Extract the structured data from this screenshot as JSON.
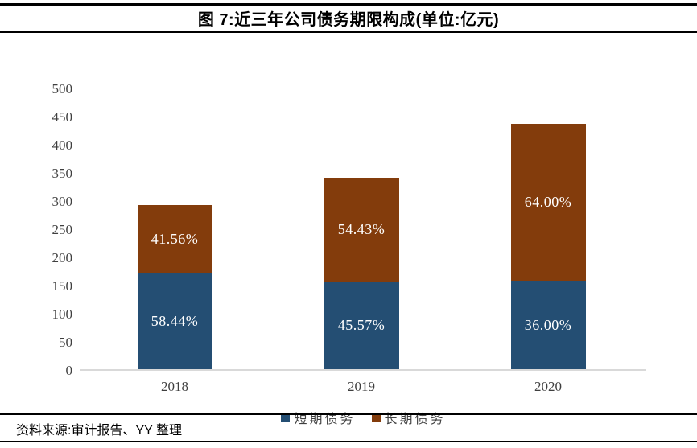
{
  "header": {
    "title": "图 7:近三年公司债务期限构成(单位:亿元)"
  },
  "footer": {
    "source": "资料来源:审计报告、YY 整理"
  },
  "chart_data": {
    "type": "bar",
    "stacked": true,
    "title": "图 7:近三年公司债务期限构成(单位:亿元)",
    "unit": "亿元",
    "categories": [
      "2018",
      "2019",
      "2020"
    ],
    "series": [
      {
        "name": "短期债务",
        "key": "short-term",
        "color": "#244E73",
        "values": [
          170,
          155,
          157
        ],
        "percent_labels": [
          "58.44%",
          "45.57%",
          "36.00%"
        ]
      },
      {
        "name": "长期债务",
        "key": "long-term",
        "color": "#833C0C",
        "values": [
          121,
          185,
          279
        ],
        "percent_labels": [
          "41.56%",
          "54.43%",
          "64.00%"
        ]
      }
    ],
    "totals": [
      291,
      340,
      436
    ],
    "xlabel": "",
    "ylabel": "",
    "ylim": [
      0,
      500
    ],
    "ytick_step": 50,
    "yticks": [
      0,
      50,
      100,
      150,
      200,
      250,
      300,
      350,
      400,
      450,
      500
    ],
    "grid": false,
    "legend_position": "bottom",
    "label_color": "#FFFFFF",
    "axis_line_color": "#D9D9D9",
    "tick_text_color": "#3F3F3F"
  }
}
